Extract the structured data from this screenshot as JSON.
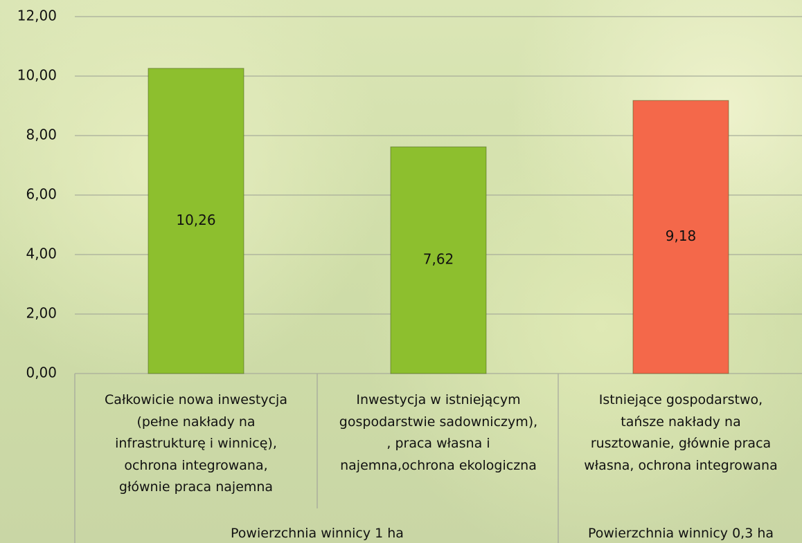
{
  "chart_data": {
    "type": "bar",
    "categories": [
      "Całkowicie nowa inwestycja\n(pełne nakłady na\ninfrastrukturę i winnicę),\nochrona integrowana,\ngłównie praca najemna",
      "Inwestycja w istniejącym\ngospodarstwie sadowniczym),\n, praca własna i\nnajemna,ochrona ekologiczna",
      "Istniejące gospodarstwo,\ntańsze nakłady na\nrusztowanie, głównie praca\nwłasna, ochrona  integrowana"
    ],
    "category_groups": [
      "Powierzchnia winnicy 1 ha",
      "Powierzchnia winnicy 1 ha",
      "Powierzchnia winnicy 0,3 ha"
    ],
    "values": [
      10.26,
      7.62,
      9.18
    ],
    "value_labels": [
      "10,26",
      "7,62",
      "9,18"
    ],
    "colors": [
      "#8dbf2e",
      "#8dbf2e",
      "#f4684a"
    ],
    "ylim": [
      0,
      12
    ],
    "yticks": [
      {
        "value": 0,
        "label": "0,00"
      },
      {
        "value": 2,
        "label": "2,00"
      },
      {
        "value": 4,
        "label": "4,00"
      },
      {
        "value": 6,
        "label": "6,00"
      },
      {
        "value": 8,
        "label": "8,00"
      },
      {
        "value": 10,
        "label": "10,00"
      },
      {
        "value": 12,
        "label": "12,00"
      }
    ],
    "grid": true
  }
}
